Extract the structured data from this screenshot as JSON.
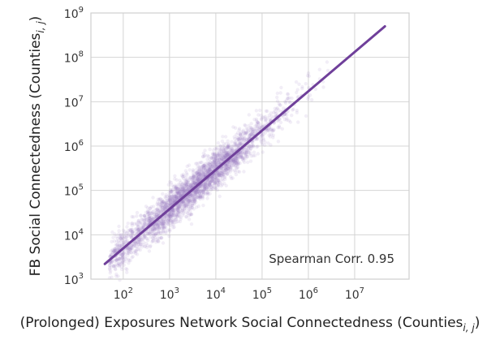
{
  "chart_data": {
    "type": "scatter",
    "xlabel": "(Prolonged) Exposures Network Social Connectedness (Counties",
    "xlabel_sub": "i, j",
    "xlabel_tail": ")",
    "ylabel": "FB Social Connectedness (Counties",
    "ylabel_sub": "i, j",
    "ylabel_tail": ")",
    "x_scale": "log",
    "y_scale": "log",
    "xlim": [
      20,
      150000000
    ],
    "ylim": [
      1000,
      1000000000
    ],
    "x_ticks": [
      {
        "value": 100,
        "base": "10",
        "exp": "2"
      },
      {
        "value": 1000,
        "base": "10",
        "exp": "3"
      },
      {
        "value": 10000,
        "base": "10",
        "exp": "4"
      },
      {
        "value": 100000,
        "base": "10",
        "exp": "5"
      },
      {
        "value": 1000000,
        "base": "10",
        "exp": "6"
      },
      {
        "value": 10000000,
        "base": "10",
        "exp": "7"
      }
    ],
    "y_ticks": [
      {
        "value": 1000,
        "base": "10",
        "exp": "3"
      },
      {
        "value": 10000,
        "base": "10",
        "exp": "4"
      },
      {
        "value": 100000,
        "base": "10",
        "exp": "5"
      },
      {
        "value": 1000000,
        "base": "10",
        "exp": "6"
      },
      {
        "value": 10000000,
        "base": "10",
        "exp": "7"
      },
      {
        "value": 100000000,
        "base": "10",
        "exp": "8"
      },
      {
        "value": 1000000000,
        "base": "10",
        "exp": "9"
      }
    ],
    "grid": true,
    "point_color": "#9b7bc0",
    "line_color": "#6f3f9a",
    "fit_line": {
      "x": [
        40,
        45000000
      ],
      "y": [
        2200,
        500000000
      ]
    },
    "point_cloud": {
      "x_range": [
        50,
        40000000
      ],
      "relation": "log10(y) ≈ 0.8866·log10(x) + 1.922",
      "n_points": 3000
    },
    "annotation": "Spearman Corr. 0.95"
  }
}
